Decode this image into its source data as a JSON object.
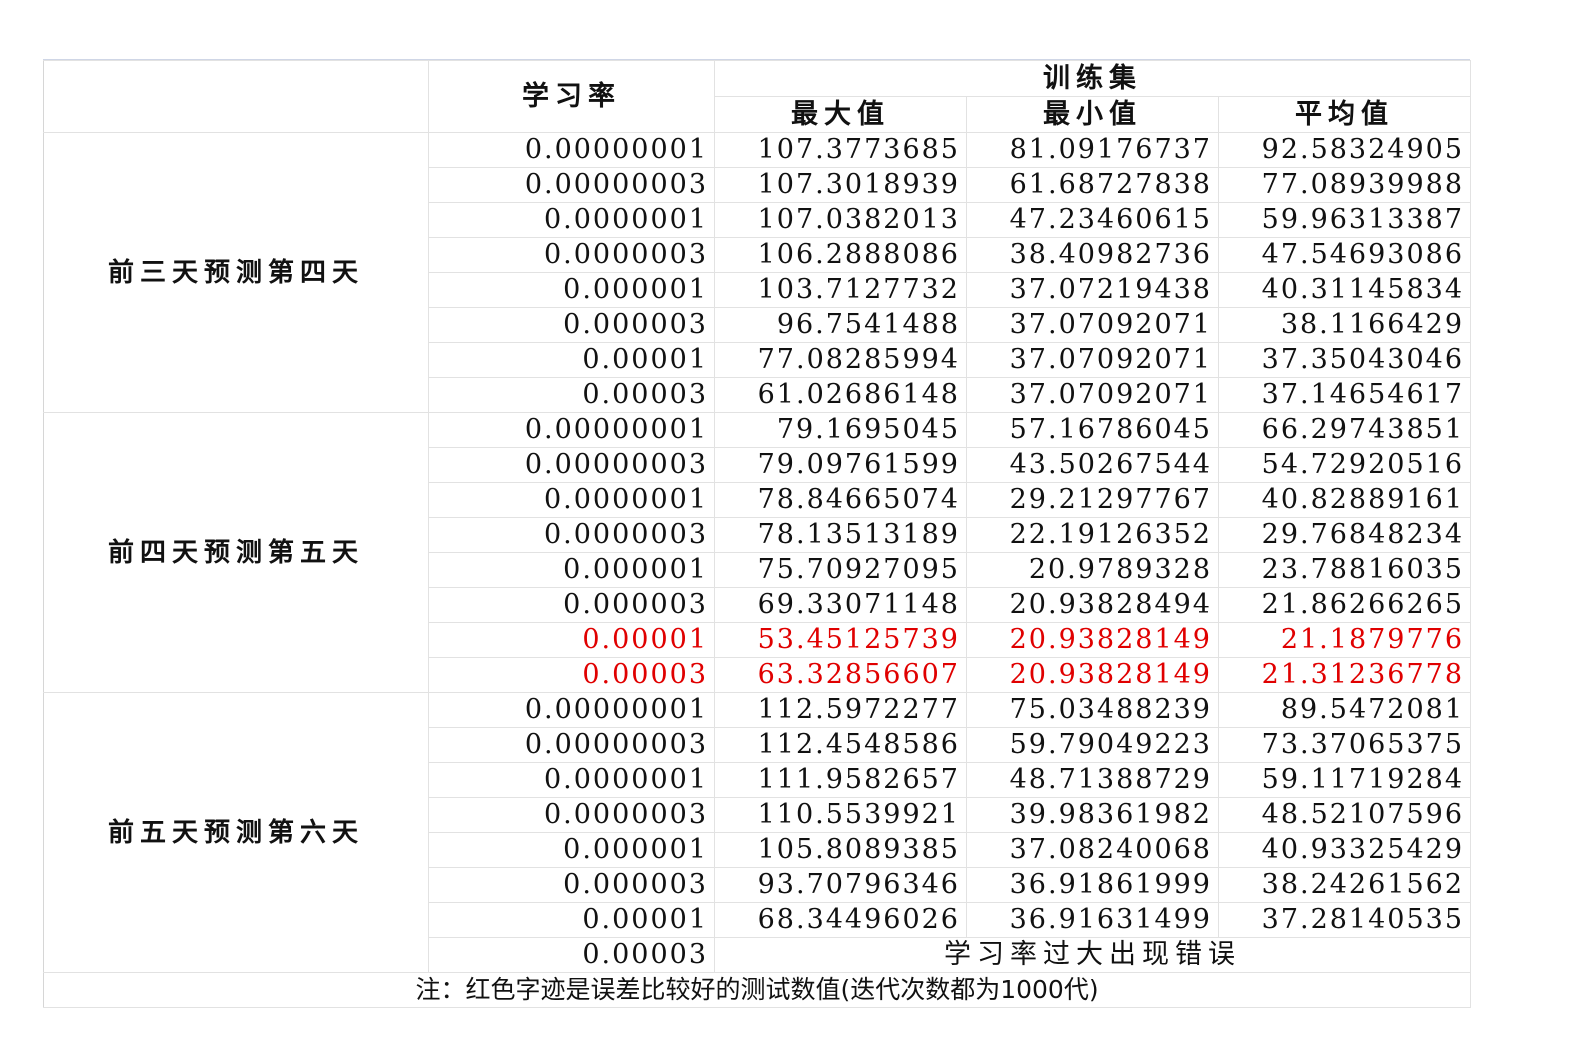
{
  "header": {
    "lr_label": "学习率",
    "training_set": "训练集",
    "max_label": "最大值",
    "min_label": "最小值",
    "avg_label": "平均值"
  },
  "groups": [
    {
      "label": "前三天预测第四天",
      "rows": [
        {
          "lr": "0.00000001",
          "max": "107.3773685",
          "min": "81.09176737",
          "avg": "92.58324905",
          "red": false
        },
        {
          "lr": "0.00000003",
          "max": "107.3018939",
          "min": "61.68727838",
          "avg": "77.08939988",
          "red": false
        },
        {
          "lr": "0.0000001",
          "max": "107.0382013",
          "min": "47.23460615",
          "avg": "59.96313387",
          "red": false
        },
        {
          "lr": "0.0000003",
          "max": "106.2888086",
          "min": "38.40982736",
          "avg": "47.54693086",
          "red": false
        },
        {
          "lr": "0.000001",
          "max": "103.7127732",
          "min": "37.07219438",
          "avg": "40.31145834",
          "red": false
        },
        {
          "lr": "0.000003",
          "max": "96.7541488",
          "min": "37.07092071",
          "avg": "38.1166429",
          "red": false
        },
        {
          "lr": "0.00001",
          "max": "77.08285994",
          "min": "37.07092071",
          "avg": "37.35043046",
          "red": false
        },
        {
          "lr": "0.00003",
          "max": "61.02686148",
          "min": "37.07092071",
          "avg": "37.14654617",
          "red": false
        }
      ]
    },
    {
      "label": "前四天预测第五天",
      "rows": [
        {
          "lr": "0.00000001",
          "max": "79.1695045",
          "min": "57.16786045",
          "avg": "66.29743851",
          "red": false
        },
        {
          "lr": "0.00000003",
          "max": "79.09761599",
          "min": "43.50267544",
          "avg": "54.72920516",
          "red": false
        },
        {
          "lr": "0.0000001",
          "max": "78.84665074",
          "min": "29.21297767",
          "avg": "40.82889161",
          "red": false
        },
        {
          "lr": "0.0000003",
          "max": "78.13513189",
          "min": "22.19126352",
          "avg": "29.76848234",
          "red": false
        },
        {
          "lr": "0.000001",
          "max": "75.70927095",
          "min": "20.9789328",
          "avg": "23.78816035",
          "red": false
        },
        {
          "lr": "0.000003",
          "max": "69.33071148",
          "min": "20.93828494",
          "avg": "21.86266265",
          "red": false
        },
        {
          "lr": "0.00001",
          "max": "53.45125739",
          "min": "20.93828149",
          "avg": "21.1879776",
          "red": true
        },
        {
          "lr": "0.00003",
          "max": "63.32856607",
          "min": "20.93828149",
          "avg": "21.31236778",
          "red": true
        }
      ]
    },
    {
      "label": "前五天预测第六天",
      "rows": [
        {
          "lr": "0.00000001",
          "max": "112.5972277",
          "min": "75.03488239",
          "avg": "89.5472081",
          "red": false
        },
        {
          "lr": "0.00000003",
          "max": "112.4548586",
          "min": "59.79049223",
          "avg": "73.37065375",
          "red": false
        },
        {
          "lr": "0.0000001",
          "max": "111.9582657",
          "min": "48.71388729",
          "avg": "59.11719284",
          "red": false
        },
        {
          "lr": "0.0000003",
          "max": "110.5539921",
          "min": "39.98361982",
          "avg": "48.52107596",
          "red": false
        },
        {
          "lr": "0.000001",
          "max": "105.8089385",
          "min": "37.08240068",
          "avg": "40.93325429",
          "red": false
        },
        {
          "lr": "0.000003",
          "max": "93.70796346",
          "min": "36.91861999",
          "avg": "38.24261562",
          "red": false
        },
        {
          "lr": "0.00001",
          "max": "68.34496026",
          "min": "36.91631499",
          "avg": "37.28140535",
          "red": false
        }
      ],
      "error_row": {
        "lr": "0.00003",
        "message": "学习率过大出现错误"
      }
    }
  ],
  "note": "注：红色字迹是误差比较好的测试数值(迭代次数都为1000代)",
  "colors": {
    "highlight": "#e00000",
    "grid": "#e2e2e2"
  }
}
